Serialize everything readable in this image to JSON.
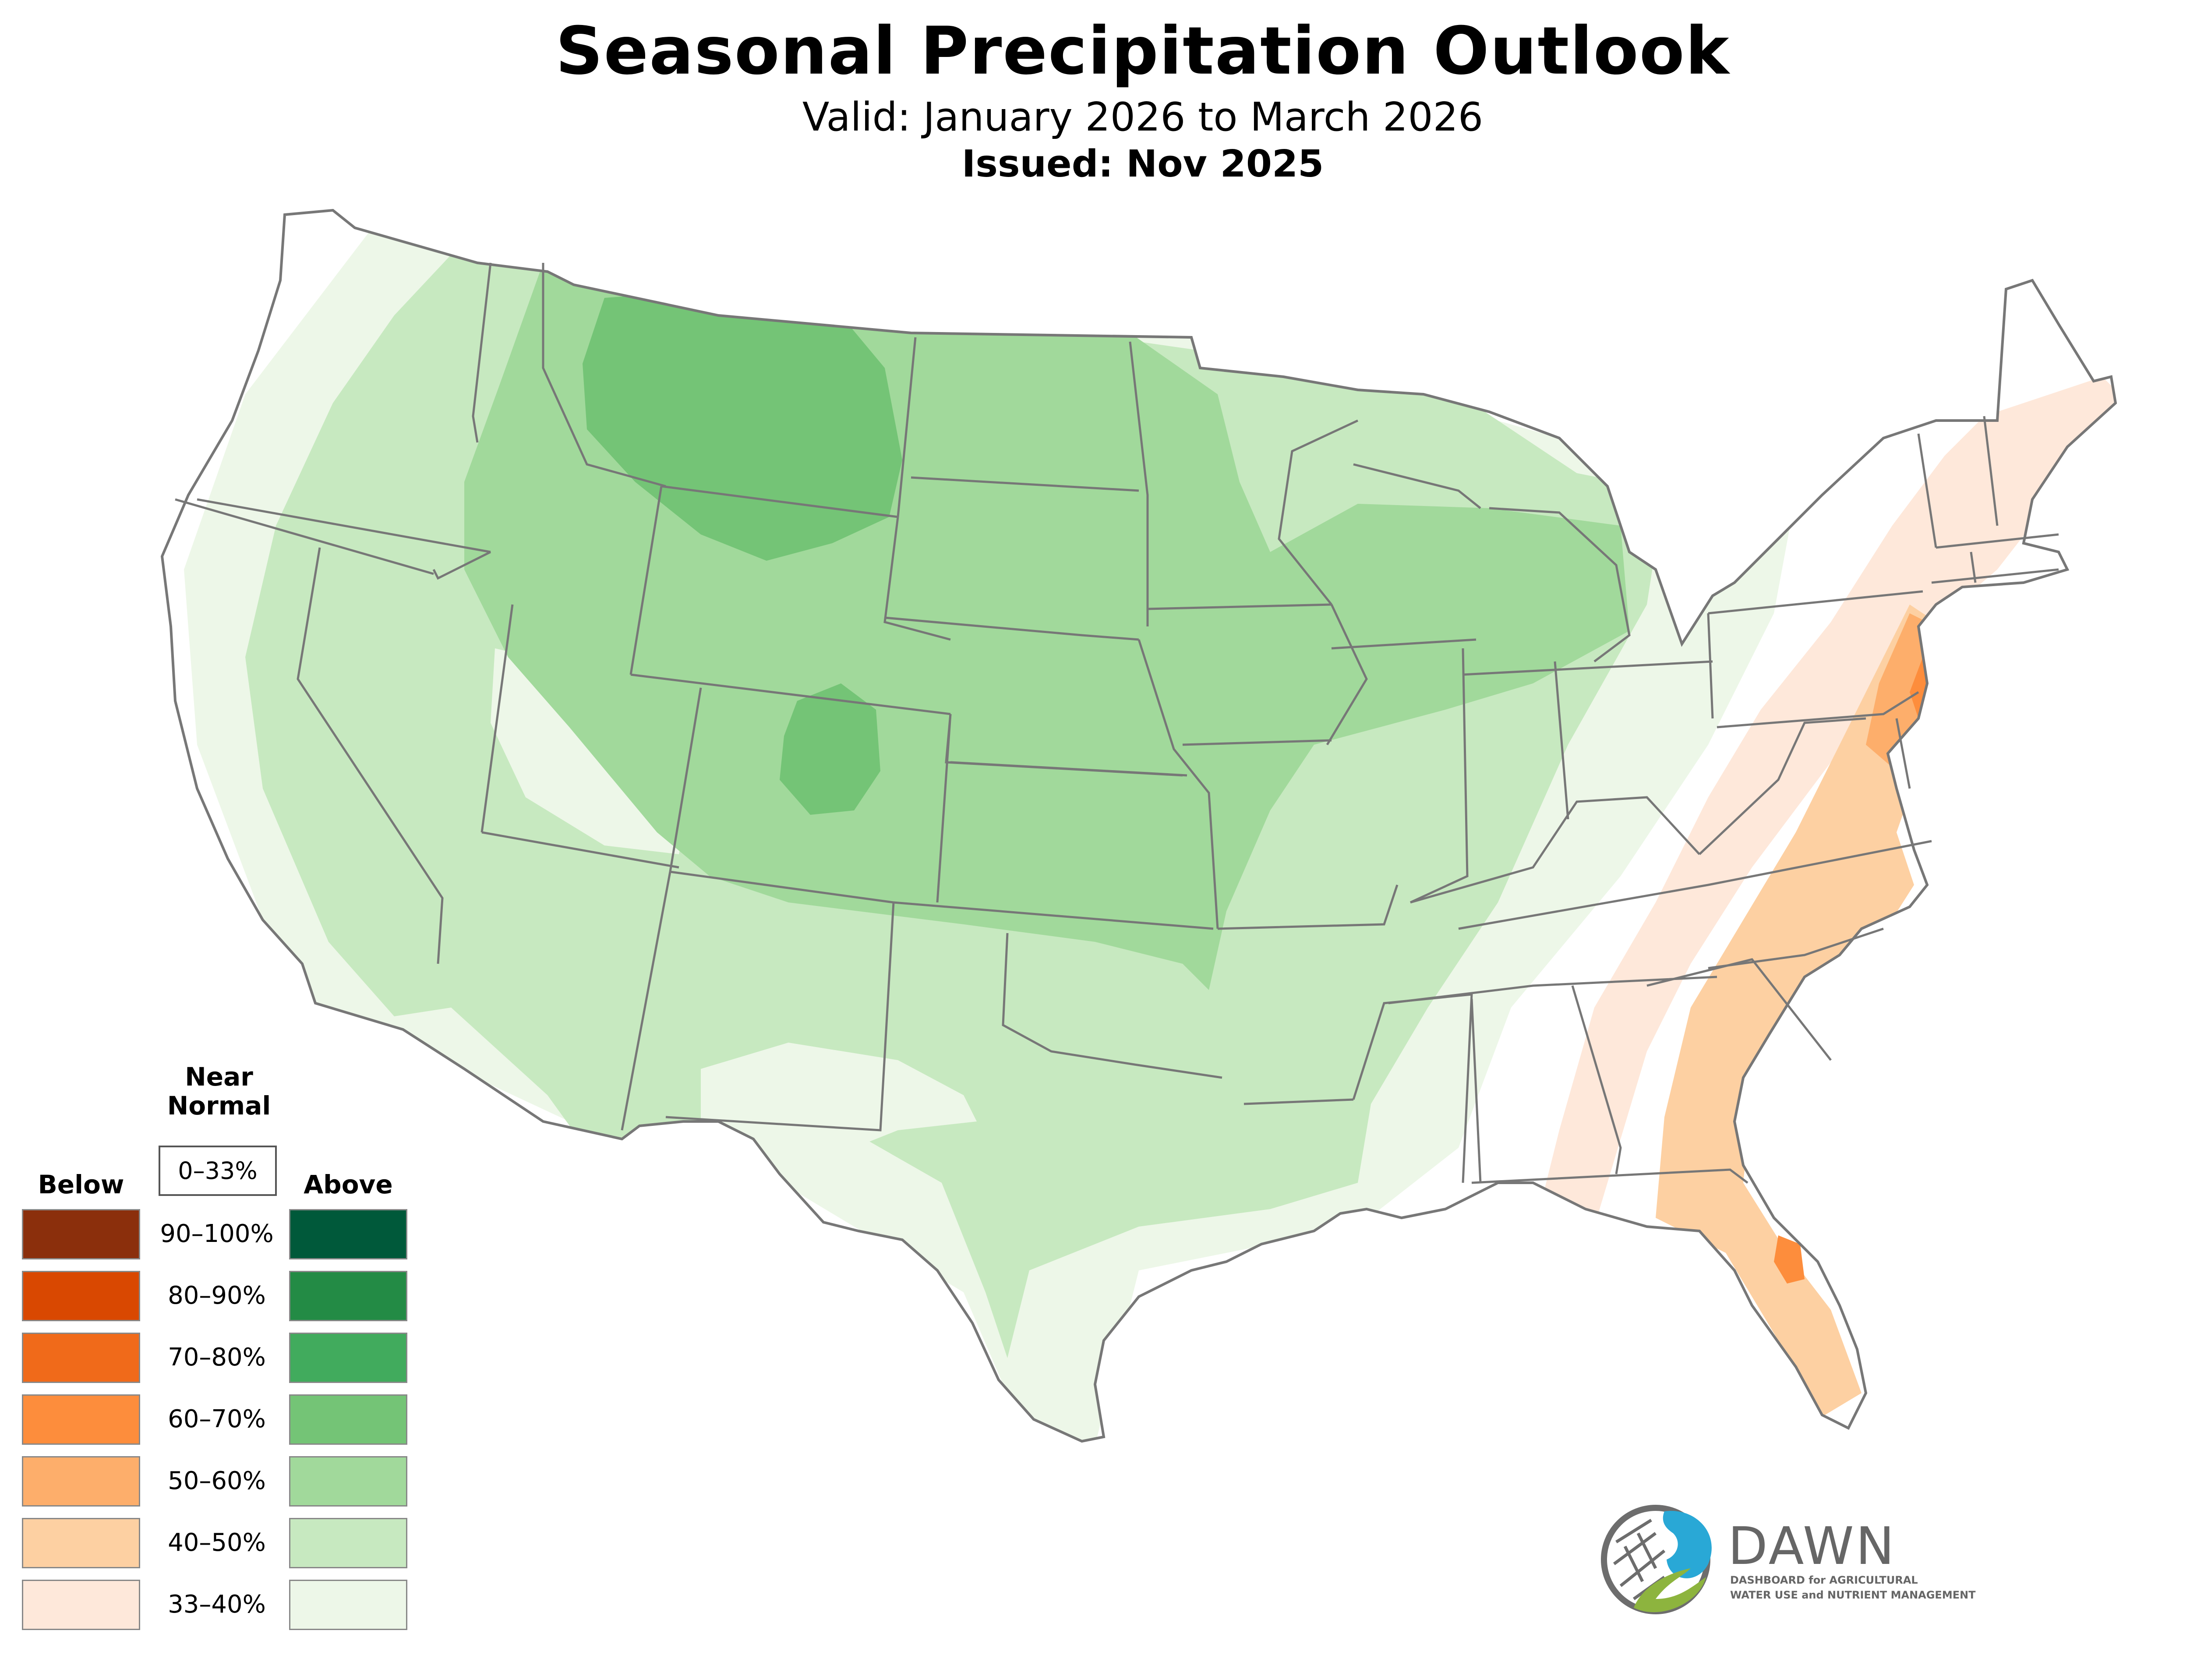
{
  "header": {
    "title": "Seasonal Precipitation Outlook",
    "valid": "Valid: January 2026 to March 2026",
    "issued": "Issued: Nov 2025"
  },
  "legend": {
    "near_normal_line1": "Near",
    "near_normal_line2": "Normal",
    "near_normal_range": "0–33%",
    "below_label": "Below",
    "above_label": "Above",
    "ranges": [
      "90–100%",
      "80–90%",
      "70–80%",
      "60–70%",
      "50–60%",
      "40–50%",
      "33–40%"
    ],
    "below_colors": [
      "#8B2F0C",
      "#D94801",
      "#F06A1A",
      "#FD8D3C",
      "#FDAE6B",
      "#FDD0A2",
      "#FEE8DA"
    ],
    "above_colors": [
      "#00593A",
      "#238B45",
      "#41AB5D",
      "#74C476",
      "#A1D99B",
      "#C7E9C0",
      "#EDF7E8"
    ]
  },
  "map": {
    "colors": {
      "outline": "#777777",
      "above_33_40": "#EDF7E8",
      "above_40_50": "#C7E9C0",
      "above_50_60": "#A1D99B",
      "above_60_70": "#74C476",
      "below_33_40": "#FEE8DA",
      "below_40_50": "#FDD0A2",
      "below_50_60": "#FDAE6B",
      "below_60_70": "#FD8D3C"
    }
  },
  "logo": {
    "name": "DAWN",
    "tagline_line1": "DASHBOARD for AGRICULTURAL",
    "tagline_line2": "WATER USE and NUTRIENT MANAGEMENT",
    "blue": "#29A8D6",
    "green": "#8DB43E",
    "gray": "#6D6D6D"
  }
}
